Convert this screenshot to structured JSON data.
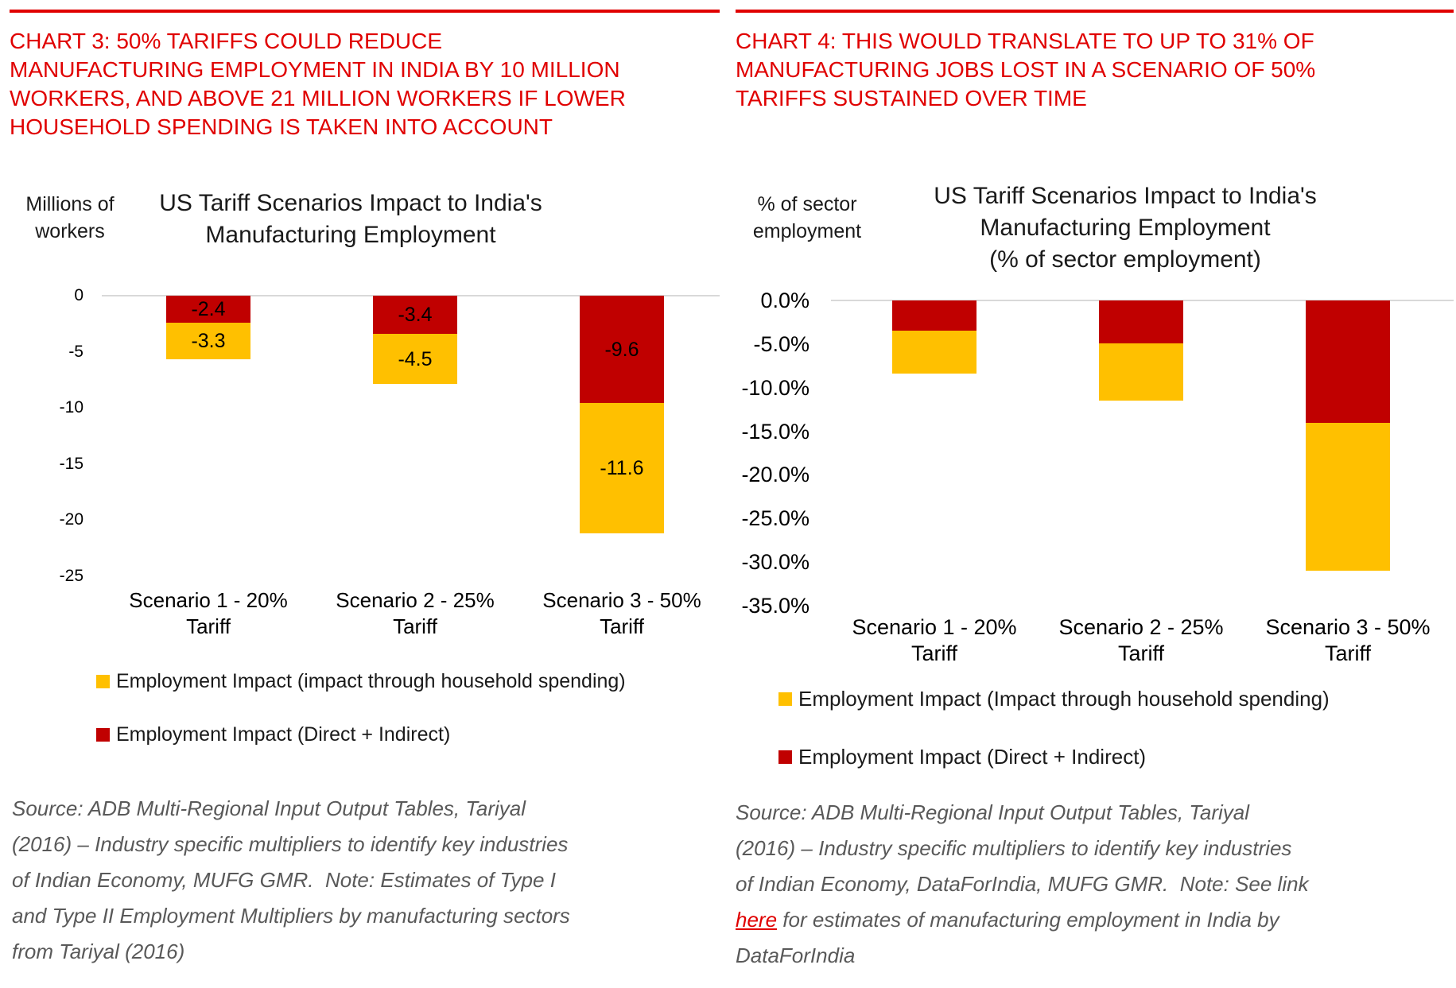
{
  "page": {
    "accent_red": "#E00000",
    "background": "#FFFFFF",
    "baseline_gray": "#D9D9D9"
  },
  "left": {
    "headline": "CHART 3: 50% TARIFFS COULD REDUCE\nMANUFACTURING EMPLOYMENT IN INDIA BY 10 MILLION\nWORKERS, AND ABOVE 21 MILLION WORKERS IF LOWER\nHOUSEHOLD SPENDING IS TAKEN INTO ACCOUNT",
    "unit_label": "Millions of\nworkers",
    "chart_title": "US Tariff Scenarios Impact to India's\nManufacturing Employment",
    "legend": [
      {
        "label": "Employment Impact (impact through household spending)",
        "color": "#FFC000"
      },
      {
        "label": "Employment Impact (Direct + Indirect)",
        "color": "#C00000"
      }
    ],
    "source": "Source: ADB Multi-Regional Input Output Tables, Tariyal\n(2016) – Industry specific multipliers to identify key industries\nof Indian Economy, MUFG GMR.  Note: Estimates of Type I\nand Type II Employment Multipliers by manufacturing sectors\nfrom Tariyal (2016)"
  },
  "right": {
    "headline": "CHART 4: THIS WOULD TRANSLATE TO UP TO 31% OF\nMANUFACTURING JOBS LOST IN A SCENARIO OF 50%\nTARIFFS SUSTAINED OVER TIME",
    "unit_label": "% of sector\nemployment",
    "chart_title": "US Tariff Scenarios Impact to India's\nManufacturing Employment\n(% of sector employment)",
    "legend": [
      {
        "label": "Employment Impact (Impact through household spending)",
        "color": "#FFC000"
      },
      {
        "label": "Employment Impact (Direct + Indirect)",
        "color": "#C00000"
      }
    ],
    "source_before_link": "Source: ADB Multi-Regional Input Output Tables, Tariyal\n(2016) – Industry specific multipliers to identify key industries\nof Indian Economy, DataForIndia, MUFG GMR.  Note: See link\n",
    "source_link_text": "here",
    "source_after_link": " for estimates of manufacturing employment in India by\nDataForIndia"
  },
  "chart_data": [
    {
      "id": "chart3",
      "type": "bar",
      "stacked": true,
      "title": "US Tariff Scenarios Impact to India's Manufacturing Employment",
      "ylabel": "Millions of workers",
      "categories": [
        "Scenario 1 - 20%\nTariff",
        "Scenario 2 - 25%\nTariff",
        "Scenario 3 - 50%\nTariff"
      ],
      "series": [
        {
          "name": "Employment Impact (Direct + Indirect)",
          "color": "#C00000",
          "values": [
            -2.4,
            -3.4,
            -9.6
          ]
        },
        {
          "name": "Employment Impact (impact through household spending)",
          "color": "#FFC000",
          "values": [
            -3.3,
            -4.5,
            -11.6
          ]
        }
      ],
      "show_data_labels": true,
      "ylim": [
        -25,
        0
      ],
      "yticks": [
        0,
        -5,
        -10,
        -15,
        -20,
        -25
      ],
      "ytick_labels": [
        "0",
        "-5",
        "-10",
        "-15",
        "-20",
        "-25"
      ],
      "grid": false,
      "legend_position": "bottom-left"
    },
    {
      "id": "chart4",
      "type": "bar",
      "stacked": true,
      "title": "US Tariff Scenarios Impact to India's Manufacturing Employment (% of sector employment)",
      "ylabel": "% of sector employment",
      "categories": [
        "Scenario 1 - 20%\nTariff",
        "Scenario 2 - 25%\nTariff",
        "Scenario 3 - 50%\nTariff"
      ],
      "series": [
        {
          "name": "Employment Impact (Direct + Indirect)",
          "color": "#C00000",
          "values": [
            -3.5,
            -4.9,
            -14.0
          ]
        },
        {
          "name": "Employment Impact (Impact through household spending)",
          "color": "#FFC000",
          "values": [
            -4.9,
            -6.6,
            -17.0
          ]
        }
      ],
      "show_data_labels": false,
      "ylim": [
        -35,
        0
      ],
      "yticks": [
        0,
        -5,
        -10,
        -15,
        -20,
        -25,
        -30,
        -35
      ],
      "ytick_labels": [
        "0.0%",
        "-5.0%",
        "-10.0%",
        "-15.0%",
        "-20.0%",
        "-25.0%",
        "-30.0%",
        "-35.0%"
      ],
      "grid": false,
      "legend_position": "bottom-left"
    }
  ]
}
